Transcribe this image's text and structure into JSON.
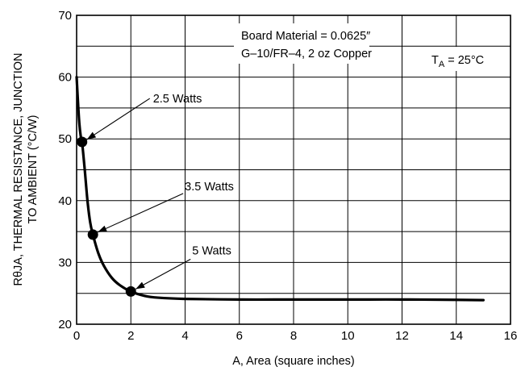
{
  "chart_data": {
    "type": "line",
    "xlabel": "A, Area (square inches)",
    "ylabel_line1": "RθJA, THERMAL RESISTANCE, JUNCTION",
    "ylabel_line2": "TO AMBIENT (°C/W)",
    "xlim": [
      0,
      16
    ],
    "ylim": [
      20,
      70
    ],
    "x_ticks": [
      0,
      2,
      4,
      6,
      8,
      10,
      12,
      14,
      16
    ],
    "y_ticks": [
      20,
      30,
      40,
      50,
      60,
      70
    ],
    "x_tick_labels": [
      "0",
      "2",
      "4",
      "6",
      "8",
      "10",
      "12",
      "14",
      "16"
    ],
    "y_tick_labels": [
      "20",
      "30",
      "40",
      "50",
      "60",
      "70"
    ],
    "grid": true,
    "series": [
      {
        "x": [
          0.0,
          0.05,
          0.1,
          0.15,
          0.2,
          0.3,
          0.4,
          0.5,
          0.6,
          0.8,
          1.0,
          1.3,
          1.6,
          2.0,
          2.5,
          3.0,
          4.0,
          6.0,
          8.0,
          10.0,
          12.0,
          14.0,
          15.0
        ],
        "y": [
          60,
          56,
          52.5,
          50.5,
          49.5,
          45,
          40,
          36.5,
          34.5,
          31.5,
          29.5,
          27.5,
          26.3,
          25.3,
          24.6,
          24.3,
          24.1,
          24.0,
          24.0,
          24.0,
          24.0,
          23.95,
          23.9
        ]
      }
    ],
    "points": [
      {
        "x": 0.2,
        "y": 49.5,
        "label": "2.5 Watts"
      },
      {
        "x": 0.6,
        "y": 34.5,
        "label": "3.5 Watts"
      },
      {
        "x": 2.0,
        "y": 25.3,
        "label": "5 Watts"
      }
    ],
    "annotations": {
      "board_line1": "Board Material = 0.0625″",
      "board_line2": "G–10/FR–4, 2 oz Copper",
      "ta_prefix": "T",
      "ta_sub": "A",
      "ta_suffix": " = 25°C"
    }
  }
}
